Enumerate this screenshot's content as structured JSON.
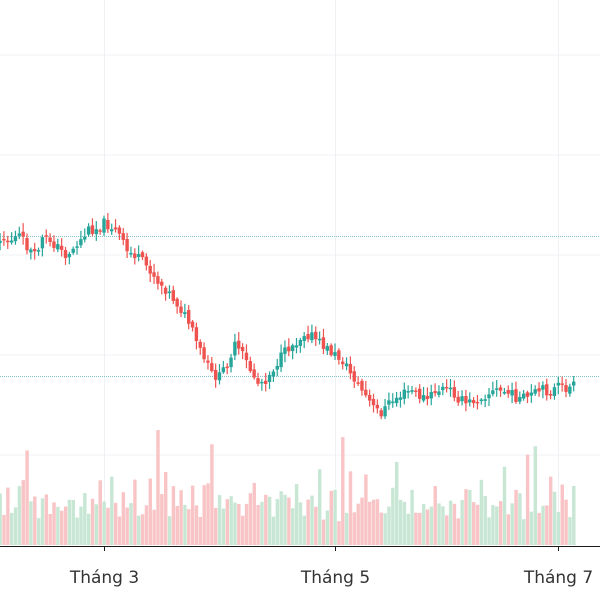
{
  "chart_data": {
    "type": "candlestick",
    "x_tick_labels": [
      "Tháng 3",
      "Tháng 5",
      "Tháng 7"
    ],
    "x_ticks": [
      {
        "label": "Tháng 3",
        "day": 48
      },
      {
        "label": "Tháng 5",
        "day": 108
      },
      {
        "label": "Tháng 7",
        "day": 166
      }
    ],
    "y_range": [
      -120,
      620
    ],
    "horizontal_reference_lines": [
      200,
      390
    ],
    "grid": true,
    "colors": {
      "up": "#26a69a",
      "down": "#ef5350",
      "volume_up": "#c8e6d4",
      "volume_down": "#f8c4c6",
      "grid": "#eef0f3",
      "ref_line": "#7fc3c9",
      "axis": "#1a1a1a",
      "tick_text": "#333333",
      "background": "#ffffff"
    },
    "close_path": [
      [
        0,
        215
      ],
      [
        3,
        240
      ],
      [
        6,
        275
      ],
      [
        8,
        300
      ],
      [
        10,
        322
      ],
      [
        12,
        290
      ],
      [
        14,
        262
      ],
      [
        17,
        248
      ],
      [
        19,
        226
      ],
      [
        21,
        200
      ],
      [
        23,
        208
      ],
      [
        26,
        200
      ],
      [
        28,
        215
      ],
      [
        30,
        228
      ],
      [
        32,
        205
      ],
      [
        34,
        206
      ],
      [
        36,
        216
      ],
      [
        38,
        226
      ],
      [
        40,
        218
      ],
      [
        42,
        206
      ],
      [
        44,
        192
      ],
      [
        46,
        190
      ],
      [
        48,
        183
      ],
      [
        50,
        188
      ],
      [
        52,
        200
      ],
      [
        54,
        222
      ],
      [
        56,
        226
      ],
      [
        58,
        236
      ],
      [
        60,
        246
      ],
      [
        62,
        262
      ],
      [
        64,
        272
      ],
      [
        66,
        285
      ],
      [
        68,
        300
      ],
      [
        70,
        318
      ],
      [
        72,
        345
      ],
      [
        74,
        368
      ],
      [
        76,
        388
      ],
      [
        78,
        392
      ],
      [
        80,
        372
      ],
      [
        82,
        350
      ],
      [
        84,
        362
      ],
      [
        86,
        382
      ],
      [
        88,
        400
      ],
      [
        90,
        395
      ],
      [
        92,
        380
      ],
      [
        94,
        365
      ],
      [
        96,
        352
      ],
      [
        98,
        344
      ],
      [
        100,
        332
      ],
      [
        102,
        336
      ],
      [
        104,
        346
      ],
      [
        106,
        354
      ],
      [
        108,
        362
      ],
      [
        110,
        370
      ],
      [
        112,
        386
      ],
      [
        114,
        402
      ],
      [
        116,
        418
      ],
      [
        118,
        434
      ],
      [
        120,
        440
      ],
      [
        122,
        428
      ],
      [
        124,
        420
      ],
      [
        126,
        414
      ],
      [
        128,
        410
      ],
      [
        130,
        418
      ],
      [
        132,
        422
      ],
      [
        134,
        412
      ],
      [
        136,
        408
      ],
      [
        138,
        410
      ],
      [
        140,
        420
      ],
      [
        142,
        428
      ],
      [
        144,
        424
      ],
      [
        146,
        418
      ],
      [
        148,
        414
      ],
      [
        150,
        410
      ],
      [
        152,
        412
      ],
      [
        154,
        416
      ],
      [
        156,
        422
      ],
      [
        158,
        420
      ],
      [
        160,
        414
      ],
      [
        162,
        410
      ],
      [
        164,
        412
      ],
      [
        166,
        405
      ],
      [
        168,
        408
      ],
      [
        170,
        404
      ]
    ],
    "volume_range": [
      0,
      110
    ],
    "volume_pattern": [
      45,
      40,
      55,
      38,
      30,
      48,
      42,
      35,
      60,
      28,
      36,
      44,
      52,
      30,
      101,
      40,
      90,
      33,
      47,
      38,
      58,
      44,
      36,
      50,
      40,
      30,
      46,
      52,
      95,
      38,
      42,
      34,
      48,
      40,
      36,
      44,
      30,
      38,
      46,
      52,
      40,
      35,
      48,
      42,
      30,
      36,
      44,
      50
    ]
  }
}
